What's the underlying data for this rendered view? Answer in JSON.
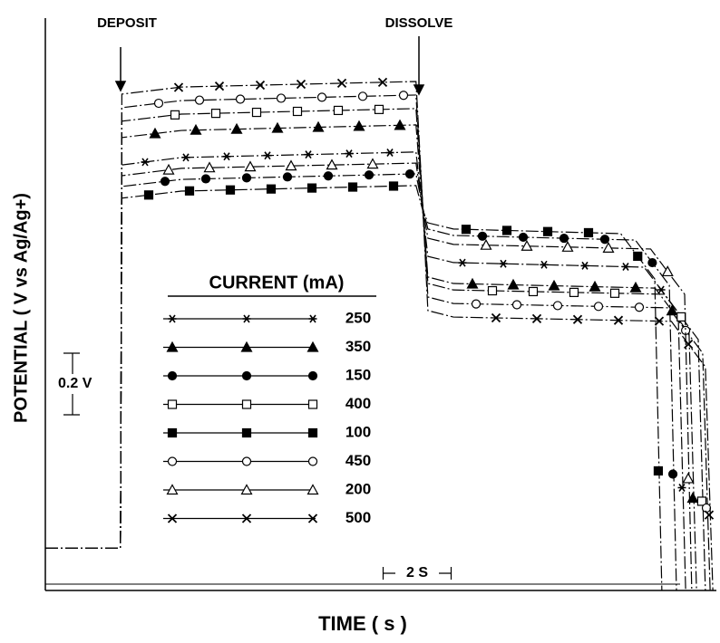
{
  "chart_data": {
    "type": "line",
    "y_label": "POTENTIAL ( V vs Ag/Ag+)",
    "x_label": "TIME ( s )",
    "annotations": [
      "DEPOSIT",
      "DISSOLVE"
    ],
    "legend_title": "CURRENT (mA)",
    "scale_bars": {
      "y": {
        "value": 0.2,
        "label": "0.2 V"
      },
      "x": {
        "value": 2,
        "label": "2 S"
      }
    },
    "xlim": [
      0,
      19.7
    ],
    "ylim": [
      0,
      1.86
    ],
    "color": "#000000",
    "grid": false,
    "series": [
      {
        "name": "250",
        "marker": "asterisk",
        "x": [
          0,
          2.21,
          2.25,
          4,
          10.9,
          11.09,
          11.25,
          12,
          17.61,
          18.61,
          18.83
        ],
        "values": [
          0.138,
          0.138,
          1.382,
          1.406,
          1.424,
          1.238,
          1.085,
          1.065,
          1.05,
          0.903,
          0
        ]
      },
      {
        "name": "350",
        "marker": "triangle-filled",
        "x": [
          0,
          2.21,
          2.25,
          4,
          10.9,
          11.09,
          11.25,
          12,
          17.93,
          18.93,
          19.15
        ],
        "values": [
          0.138,
          0.138,
          1.471,
          1.494,
          1.512,
          1.247,
          1.018,
          0.997,
          0.982,
          0.835,
          0
        ]
      },
      {
        "name": "150",
        "marker": "circle-filled",
        "x": [
          0,
          2.21,
          2.25,
          4,
          10.9,
          11.09,
          11.25,
          12,
          17.35,
          18.35,
          18.56
        ],
        "values": [
          0.138,
          0.138,
          1.312,
          1.335,
          1.353,
          1.247,
          1.174,
          1.153,
          1.138,
          0.991,
          0
        ]
      },
      {
        "name": "400",
        "marker": "square-open",
        "x": [
          0,
          2.21,
          2.25,
          4,
          10.9,
          11.09,
          11.25,
          12,
          18.2,
          19.2,
          19.41
        ],
        "values": [
          0.138,
          0.138,
          1.524,
          1.547,
          1.565,
          1.265,
          0.997,
          0.976,
          0.962,
          0.815,
          0
        ]
      },
      {
        "name": "100",
        "marker": "square-filled",
        "x": [
          0,
          2.21,
          2.25,
          4,
          10.9,
          11.09,
          11.25,
          12,
          16.92,
          17.92,
          18.13
        ],
        "values": [
          0.138,
          0.138,
          1.274,
          1.297,
          1.315,
          1.238,
          1.194,
          1.174,
          1.159,
          1.012,
          0
        ]
      },
      {
        "name": "450",
        "marker": "circle-open",
        "x": [
          0,
          2.21,
          2.25,
          4,
          10.9,
          11.09,
          11.25,
          12,
          18.33,
          19.33,
          19.55
        ],
        "values": [
          0.138,
          0.138,
          1.568,
          1.591,
          1.609,
          1.265,
          0.953,
          0.932,
          0.918,
          0.771,
          0
        ]
      },
      {
        "name": "200",
        "marker": "triangle-open",
        "x": [
          0,
          2.21,
          2.25,
          4,
          10.9,
          11.09,
          11.25,
          12,
          17.8,
          18.8,
          19.01
        ],
        "values": [
          0.138,
          0.138,
          1.347,
          1.371,
          1.388,
          1.247,
          1.144,
          1.124,
          1.109,
          0.962,
          0
        ]
      },
      {
        "name": "500",
        "marker": "x",
        "x": [
          0,
          2.21,
          2.25,
          4,
          10.9,
          11.09,
          11.25,
          12,
          18.41,
          19.41,
          19.63
        ],
        "values": [
          0.138,
          0.138,
          1.612,
          1.635,
          1.653,
          1.265,
          0.909,
          0.888,
          0.874,
          0.726,
          0
        ]
      }
    ]
  }
}
